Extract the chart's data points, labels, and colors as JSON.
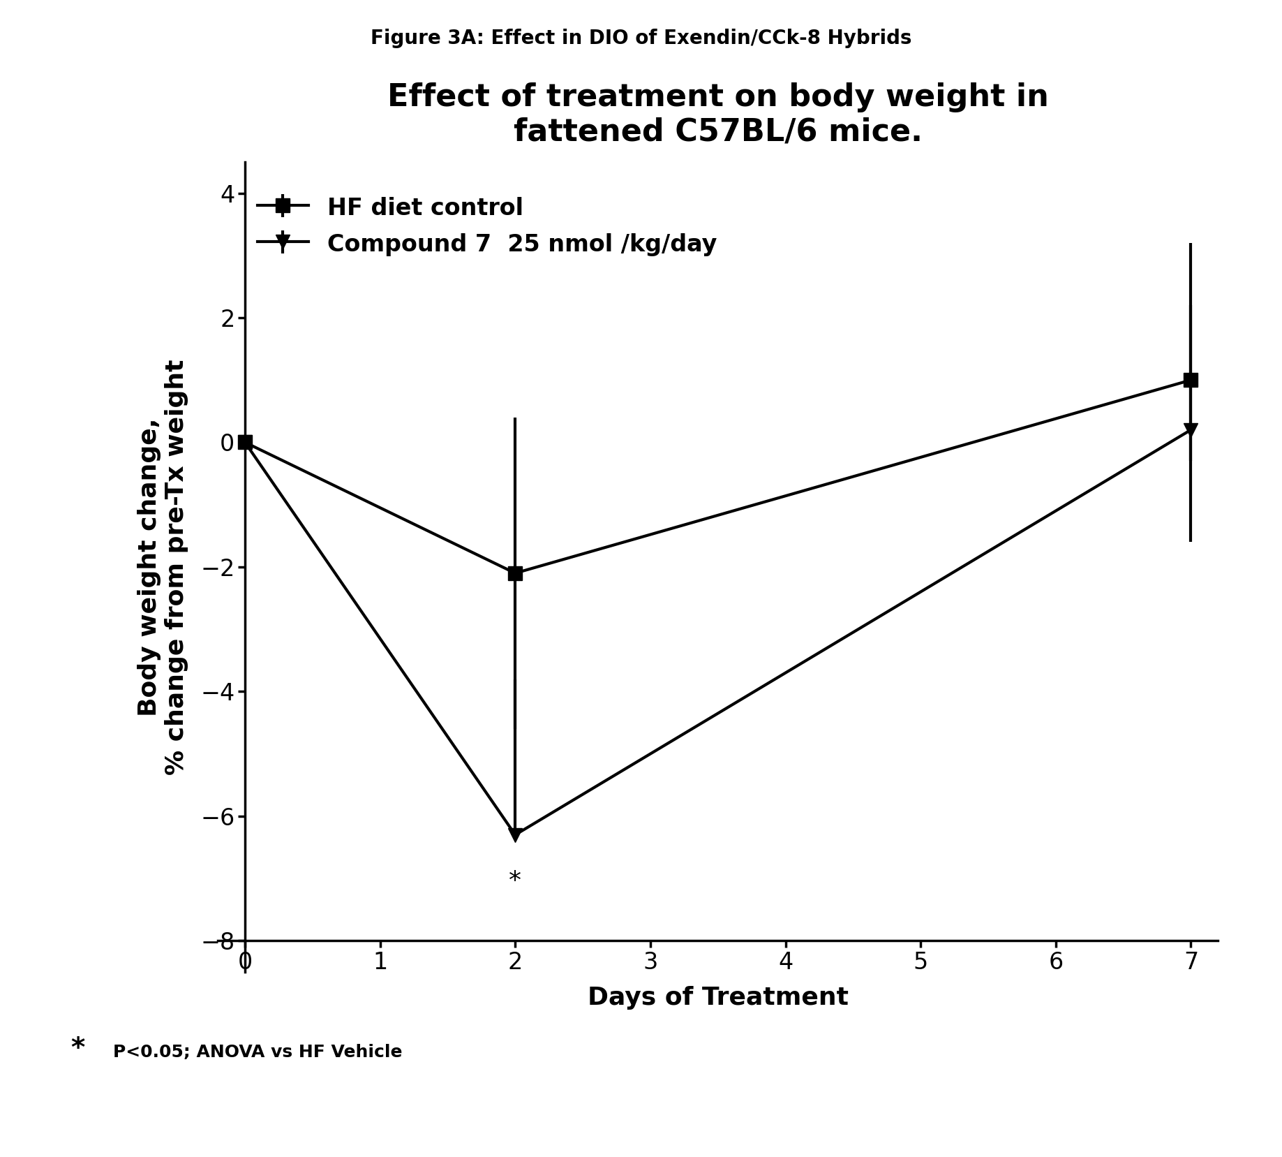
{
  "figure_title": "Figure 3A: Effect in DIO of Exendin/CCk-8 Hybrids",
  "chart_title": "Effect of treatment on body weight in\nfattened C57BL/6 mice.",
  "xlabel": "Days of Treatment",
  "ylabel": "Body weight change,\n% change from pre-Tx weight",
  "xlim": [
    -0.2,
    7.2
  ],
  "ylim": [
    -8.5,
    4.5
  ],
  "xticks": [
    0,
    1,
    2,
    3,
    4,
    5,
    6,
    7
  ],
  "yticks": [
    -8,
    -6,
    -4,
    -2,
    0,
    2,
    4
  ],
  "series1_label": "HF diet control",
  "series1_x": [
    0,
    2,
    7
  ],
  "series1_y": [
    0,
    -2.1,
    1.0
  ],
  "series1_yerr_lo": [
    0.0,
    2.5,
    1.3
  ],
  "series1_yerr_hi": [
    0.0,
    2.5,
    2.2
  ],
  "series1_color": "#000000",
  "series1_marker": "s",
  "series2_label": "Compound 7  25 nmol /kg/day",
  "series2_x": [
    0,
    2,
    7
  ],
  "series2_y": [
    0,
    -6.3,
    0.2
  ],
  "series2_yerr_lo": [
    0.0,
    0.0,
    1.8
  ],
  "series2_yerr_hi": [
    0.0,
    2.5,
    2.0
  ],
  "series2_color": "#000000",
  "series2_marker": "v",
  "star_x": 2,
  "star_y": -6.85,
  "star_text": "*",
  "footnote_star": "*",
  "footnote_text": "P<0.05; ANOVA vs HF Vehicle",
  "line_width": 3.0,
  "marker_size": 14,
  "background_color": "#ffffff",
  "figure_title_fontsize": 20,
  "chart_title_fontsize": 32,
  "axis_label_fontsize": 26,
  "tick_fontsize": 24,
  "legend_fontsize": 24,
  "star_annotation_fontsize": 26,
  "footnote_star_fontsize": 28,
  "footnote_text_fontsize": 18
}
